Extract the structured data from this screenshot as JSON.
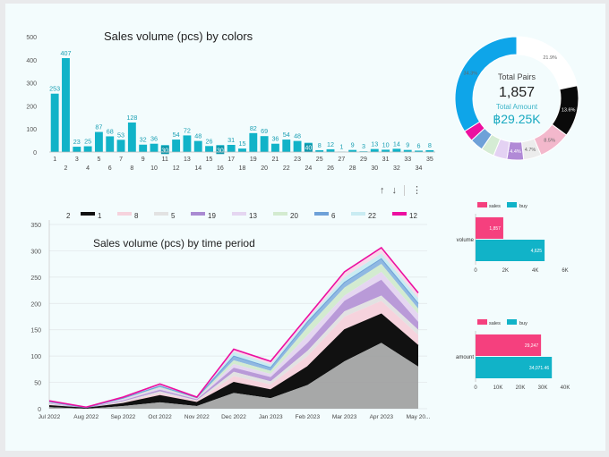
{
  "colors": {
    "teal": "#11b3c8",
    "pink": "#f5407e",
    "black": "#111111",
    "grey": "#9e9e9e",
    "donut_blue": "#0ea5e9",
    "magenta": "#ec0fa0",
    "donut_black": "#0a0a0a"
  },
  "top_chart": {
    "title": "Sales volume (pcs) by colors",
    "ymax": 500,
    "yticks": [
      "500",
      "400",
      "300",
      "200",
      "100",
      "0"
    ],
    "values": [
      253,
      407,
      23,
      25,
      87,
      68,
      53,
      128,
      32,
      36,
      30,
      54,
      72,
      48,
      26,
      30,
      31,
      15,
      82,
      69,
      36,
      54,
      48,
      40,
      8,
      12,
      1,
      9,
      3,
      13,
      10,
      14,
      9,
      6,
      8
    ],
    "labels": [
      "253",
      "407",
      "23",
      "25",
      "87",
      "68",
      "53",
      "128",
      "32",
      "36",
      "30",
      "54",
      "72",
      "48",
      "26",
      "30",
      "31",
      "15",
      "82",
      "69",
      "36",
      "54",
      "48",
      "40",
      "8",
      "12",
      "1",
      "9",
      "3",
      "13",
      "10",
      "14",
      "9",
      "6",
      "8"
    ],
    "xlabels": [
      "1",
      "2",
      "3",
      "4",
      "5",
      "6",
      "7",
      "8",
      "9",
      "10",
      "11",
      "12",
      "13",
      "14",
      "15",
      "16",
      "17",
      "18",
      "19",
      "20",
      "21",
      "22",
      "23",
      "24",
      "25",
      "26",
      "27",
      "28",
      "29",
      "30",
      "31",
      "32",
      "33",
      "34",
      "35"
    ]
  },
  "donut": {
    "center_label": "Total Pairs",
    "center_value": "1,857",
    "amount_label": "Total Amount",
    "amount_value": "฿29.25K",
    "slices": [
      {
        "value": 21.9,
        "color": "#ffffff",
        "label": "21.9%"
      },
      {
        "value": 13.6,
        "color": "#0a0a0a",
        "label": "13.6%"
      },
      {
        "value": 8.5,
        "color": "#f3b8cc",
        "label": "8.5%"
      },
      {
        "value": 4.7,
        "color": "#ececec",
        "label": "4.7%"
      },
      {
        "value": 4.4,
        "color": "#b18ad6",
        "label": "4.4%"
      },
      {
        "value": 3.6,
        "color": "#e4d2f3",
        "label": ""
      },
      {
        "value": 3.5,
        "color": "#d5ecd4",
        "label": ""
      },
      {
        "value": 3.5,
        "color": "#6ea1d8",
        "label": ""
      },
      {
        "value": 3.0,
        "color": "#ec0fa0",
        "label": ""
      },
      {
        "value": 34.3,
        "color": "#0ea5e9",
        "label": "34.3%"
      }
    ]
  },
  "toolbar": {
    "up": "↑",
    "down": "↓",
    "more": "⋮"
  },
  "area_chart": {
    "title": "Sales volume (pcs) by time period",
    "legend": [
      {
        "name": "2",
        "color": "#9e9e9e"
      },
      {
        "name": "1",
        "color": "#111111"
      },
      {
        "name": "8",
        "color": "#f6d3dd"
      },
      {
        "name": "5",
        "color": "#e2e2e2"
      },
      {
        "name": "19",
        "color": "#a98ad2"
      },
      {
        "name": "13",
        "color": "#e5d6f1"
      },
      {
        "name": "20",
        "color": "#d3ebd0"
      },
      {
        "name": "6",
        "color": "#6ea1d8"
      },
      {
        "name": "22",
        "color": "#c9ecf2"
      },
      {
        "name": "12",
        "color": "#ec0fa0"
      }
    ],
    "ymax": 350,
    "yticks": [
      "350",
      "300",
      "250",
      "200",
      "150",
      "100",
      "50",
      "0"
    ],
    "xlabels": [
      "Jul 2022",
      "Aug 2022",
      "Sep 2022",
      "Oct 2022",
      "Nov 2022",
      "Dec 2022",
      "Jan 2023",
      "Feb 2023",
      "Mar 2023",
      "Apr 2023",
      "May 20..."
    ],
    "series_cumulative": [
      {
        "name": "2",
        "values": [
          3,
          0,
          5,
          12,
          5,
          30,
          20,
          45,
          90,
          125,
          80
        ]
      },
      {
        "name": "1",
        "values": [
          6,
          1,
          10,
          25,
          12,
          50,
          36,
          80,
          150,
          180,
          120
        ]
      },
      {
        "name": "8",
        "values": [
          8,
          1,
          12,
          30,
          15,
          62,
          46,
          100,
          175,
          205,
          140
        ]
      },
      {
        "name": "5",
        "values": [
          9,
          1,
          14,
          33,
          16,
          70,
          52,
          110,
          185,
          215,
          150
        ]
      },
      {
        "name": "19",
        "values": [
          10,
          2,
          16,
          36,
          18,
          78,
          60,
          125,
          205,
          245,
          165
        ]
      },
      {
        "name": "13",
        "values": [
          11,
          2,
          18,
          39,
          19,
          85,
          66,
          140,
          215,
          260,
          180
        ]
      },
      {
        "name": "20",
        "values": [
          12,
          2,
          19,
          41,
          20,
          92,
          72,
          155,
          230,
          275,
          190
        ]
      },
      {
        "name": "6",
        "values": [
          13,
          2,
          20,
          43,
          21,
          100,
          78,
          165,
          240,
          285,
          200
        ]
      },
      {
        "name": "22",
        "values": [
          14,
          3,
          21,
          45,
          21,
          108,
          84,
          170,
          250,
          295,
          210
        ]
      },
      {
        "name": "12",
        "values": [
          15,
          3,
          22,
          47,
          22,
          113,
          90,
          175,
          260,
          306,
          220
        ]
      }
    ]
  },
  "volume_chart": {
    "legend_sales": "sales",
    "legend_buy": "buy",
    "category": "volume",
    "sales": 1857,
    "sales_label": "1,857",
    "buy": 4625,
    "buy_label": "4,625",
    "xmax": 6000,
    "xticks": [
      "0",
      "2K",
      "4K",
      "6K"
    ]
  },
  "amount_chart": {
    "legend_sales": "sales",
    "legend_buy": "buy",
    "category": "amount",
    "sales": 29247,
    "sales_label": "29,247",
    "buy": 34071.46,
    "buy_label": "34,071.46",
    "xmax": 40000,
    "xticks": [
      "0",
      "10K",
      "20K",
      "30K",
      "40K"
    ]
  }
}
